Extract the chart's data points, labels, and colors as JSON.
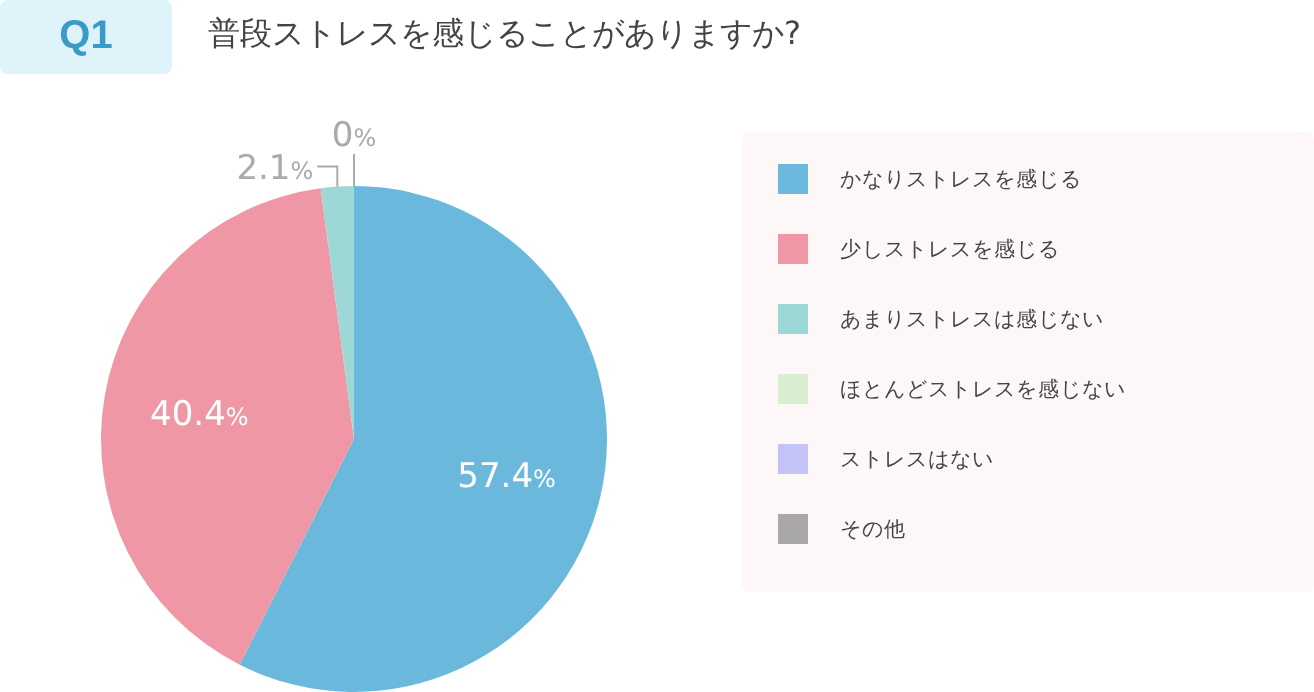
{
  "chart_data": {
    "type": "pie",
    "title": "普段ストレスを感じることがありますか?",
    "annotations": [
      "Q1"
    ],
    "categories": [
      "かなりストレスを感じる",
      "少しストレスを感じる",
      "あまりストレスは感じない",
      "ほとんどストレスを感じない",
      "ストレスはない",
      "その他"
    ],
    "values": [
      57.4,
      40.4,
      2.1,
      0,
      0,
      0
    ],
    "colors": [
      "#6ab9dc",
      "#ef97a5",
      "#9ed8d6",
      "#d9edd0",
      "#c3c3f7",
      "#a9a7a8"
    ],
    "value_labels": [
      "57.4%",
      "40.4%",
      "2.1%",
      "0%",
      null,
      null
    ],
    "legend": "right"
  }
}
